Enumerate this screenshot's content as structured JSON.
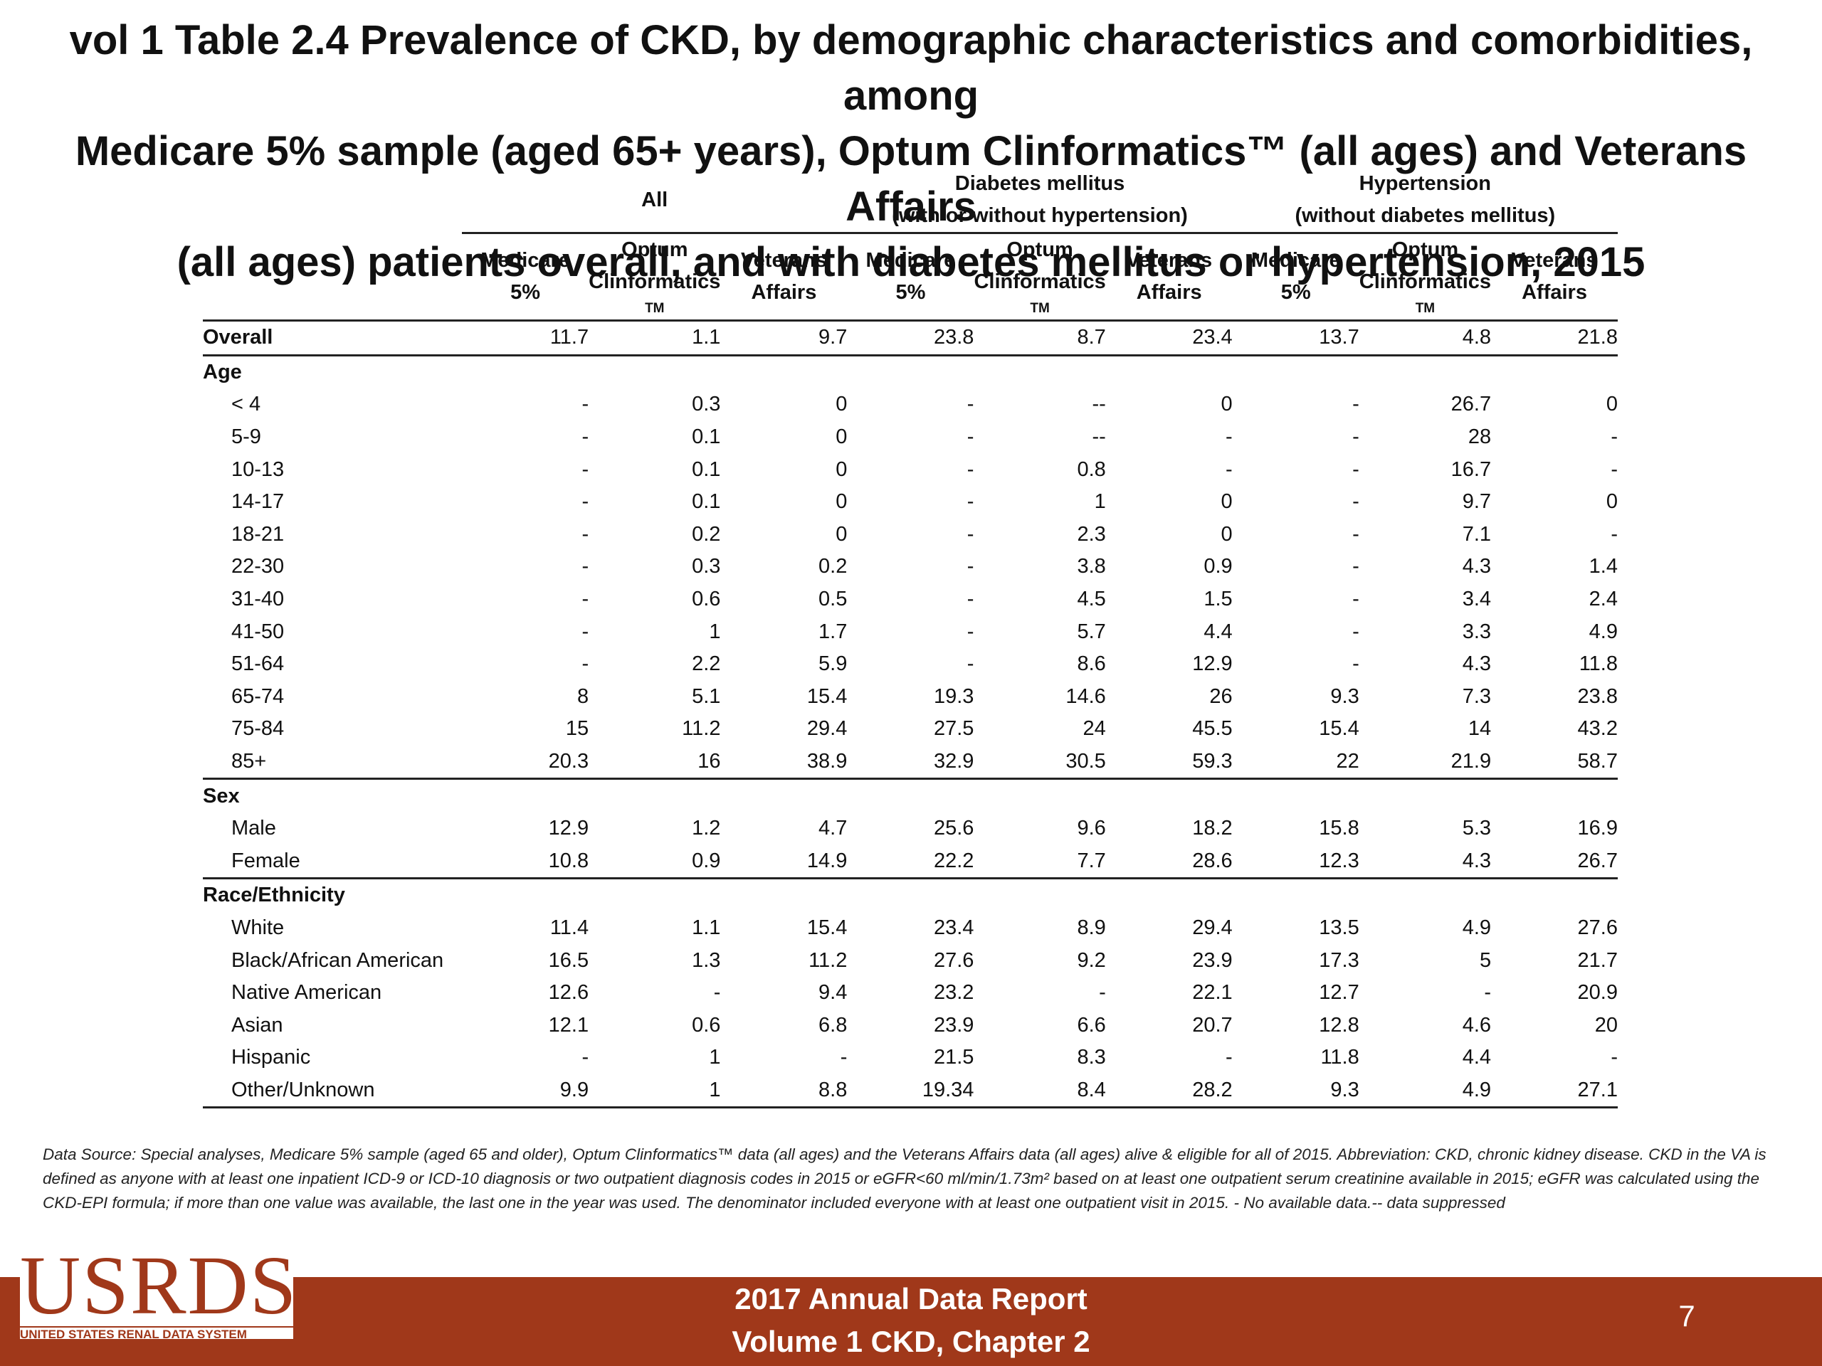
{
  "title": {
    "line1": "vol 1 Table 2.4 Prevalence of CKD, by demographic characteristics and comorbidities, among",
    "line2": "Medicare 5% sample (aged 65+ years), Optum Clinformatics™ (all ages) and Veterans Affairs",
    "line3": "(all ages) patients overall, and with diabetes mellitus or hypertension, 2015"
  },
  "groups": {
    "all": "All",
    "dm_line1": "Diabetes mellitus",
    "dm_line2": "(with or without hypertension)",
    "htn_line1": "Hypertension",
    "htn_line2": "(without diabetes mellitus)"
  },
  "columns": {
    "medicare_l1": "Medicare",
    "medicare_l2": "5%",
    "optum_l1": "Optum",
    "optum_l2": "Clinformatics",
    "optum_tm": "TM",
    "va_l1": "Veterans",
    "va_l2": "Affairs"
  },
  "overall": {
    "label": "Overall",
    "values": [
      "11.7",
      "1.1",
      "9.7",
      "23.8",
      "8.7",
      "23.4",
      "13.7",
      "4.8",
      "21.8"
    ]
  },
  "sections": {
    "age": {
      "label": "Age",
      "rows": [
        {
          "label": "< 4",
          "values": [
            "-",
            "0.3",
            "0",
            "-",
            "--",
            "0",
            "-",
            "26.7",
            "0"
          ]
        },
        {
          "label": "5-9",
          "values": [
            "-",
            "0.1",
            "0",
            "-",
            "--",
            "-",
            "-",
            "28",
            "-"
          ]
        },
        {
          "label": "10-13",
          "values": [
            "-",
            "0.1",
            "0",
            "-",
            "0.8",
            "-",
            "-",
            "16.7",
            "-"
          ]
        },
        {
          "label": "14-17",
          "values": [
            "-",
            "0.1",
            "0",
            "-",
            "1",
            "0",
            "-",
            "9.7",
            "0"
          ]
        },
        {
          "label": "18-21",
          "values": [
            "-",
            "0.2",
            "0",
            "-",
            "2.3",
            "0",
            "-",
            "7.1",
            "-"
          ]
        },
        {
          "label": "22-30",
          "values": [
            "-",
            "0.3",
            "0.2",
            "-",
            "3.8",
            "0.9",
            "-",
            "4.3",
            "1.4"
          ]
        },
        {
          "label": "31-40",
          "values": [
            "-",
            "0.6",
            "0.5",
            "-",
            "4.5",
            "1.5",
            "-",
            "3.4",
            "2.4"
          ]
        },
        {
          "label": "41-50",
          "values": [
            "-",
            "1",
            "1.7",
            "-",
            "5.7",
            "4.4",
            "-",
            "3.3",
            "4.9"
          ]
        },
        {
          "label": "51-64",
          "values": [
            "-",
            "2.2",
            "5.9",
            "-",
            "8.6",
            "12.9",
            "-",
            "4.3",
            "11.8"
          ]
        },
        {
          "label": "65-74",
          "values": [
            "8",
            "5.1",
            "15.4",
            "19.3",
            "14.6",
            "26",
            "9.3",
            "7.3",
            "23.8"
          ]
        },
        {
          "label": "75-84",
          "values": [
            "15",
            "11.2",
            "29.4",
            "27.5",
            "24",
            "45.5",
            "15.4",
            "14",
            "43.2"
          ]
        },
        {
          "label": "85+",
          "values": [
            "20.3",
            "16",
            "38.9",
            "32.9",
            "30.5",
            "59.3",
            "22",
            "21.9",
            "58.7"
          ]
        }
      ]
    },
    "sex": {
      "label": "Sex",
      "rows": [
        {
          "label": "Male",
          "values": [
            "12.9",
            "1.2",
            "4.7",
            "25.6",
            "9.6",
            "18.2",
            "15.8",
            "5.3",
            "16.9"
          ]
        },
        {
          "label": "Female",
          "values": [
            "10.8",
            "0.9",
            "14.9",
            "22.2",
            "7.7",
            "28.6",
            "12.3",
            "4.3",
            "26.7"
          ]
        }
      ]
    },
    "race": {
      "label": "Race/Ethnicity",
      "rows": [
        {
          "label": "White",
          "values": [
            "11.4",
            "1.1",
            "15.4",
            "23.4",
            "8.9",
            "29.4",
            "13.5",
            "4.9",
            "27.6"
          ]
        },
        {
          "label": "Black/African American",
          "values": [
            "16.5",
            "1.3",
            "11.2",
            "27.6",
            "9.2",
            "23.9",
            "17.3",
            "5",
            "21.7"
          ]
        },
        {
          "label": "Native American",
          "values": [
            "12.6",
            "-",
            "9.4",
            "23.2",
            "-",
            "22.1",
            "12.7",
            "-",
            "20.9"
          ]
        },
        {
          "label": "Asian",
          "values": [
            "12.1",
            "0.6",
            "6.8",
            "23.9",
            "6.6",
            "20.7",
            "12.8",
            "4.6",
            "20"
          ]
        },
        {
          "label": "Hispanic",
          "values": [
            "-",
            "1",
            "-",
            "21.5",
            "8.3",
            "-",
            "11.8",
            "4.4",
            "-"
          ]
        },
        {
          "label": "Other/Unknown",
          "values": [
            "9.9",
            "1",
            "8.8",
            "19.34",
            "8.4",
            "28.2",
            "9.3",
            "4.9",
            "27.1"
          ]
        }
      ]
    }
  },
  "footnote": "Data Source: Special analyses, Medicare 5% sample (aged 65 and older), Optum Clinformatics™ data (all ages) and the Veterans Affairs data (all ages) alive & eligible for all of 2015. Abbreviation: CKD, chronic kidney disease. CKD in the VA is defined as anyone with at least one inpatient ICD-9 or ICD-10 diagnosis or two outpatient diagnosis codes in 2015 or eGFR<60 ml/min/1.73m² based on at least one outpatient serum creatinine available in 2015; eGFR was calculated using the CKD-EPI formula; if more than one value was available, the last one in the year was used. The denominator included everyone with at least one outpatient visit in 2015. - No available data.-- data suppressed",
  "footer": {
    "logo_big": "USRDS",
    "logo_small": "UNITED STATES RENAL DATA SYSTEM",
    "report_line1": "2017 Annual Data Report",
    "report_line2": "Volume 1 CKD, Chapter 2",
    "page_number": "7"
  },
  "colors": {
    "footer_bar": "#a0381a",
    "logo": "#a0381a"
  }
}
